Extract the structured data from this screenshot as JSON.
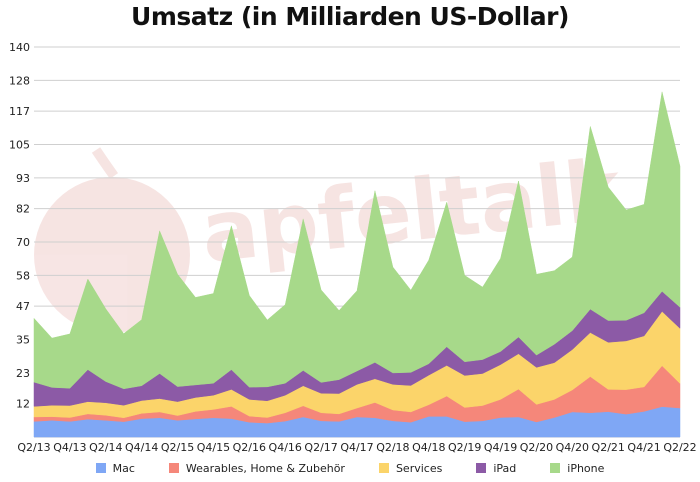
{
  "chart_data": {
    "type": "area",
    "stacked": true,
    "title": "Umsatz (in Milliarden US-Dollar)",
    "y_ticks": [
      12,
      23,
      35,
      47,
      58,
      70,
      82,
      93,
      105,
      117,
      128,
      140
    ],
    "ylim": [
      0,
      140
    ],
    "grid": true,
    "legend_position": "bottom",
    "x": [
      "Q2/13",
      "Q3/13",
      "Q4/13",
      "Q1/14",
      "Q2/14",
      "Q3/14",
      "Q4/14",
      "Q1/15",
      "Q2/15",
      "Q3/15",
      "Q4/15",
      "Q1/16",
      "Q2/16",
      "Q3/16",
      "Q4/16",
      "Q1/17",
      "Q2/17",
      "Q3/17",
      "Q4/17",
      "Q1/18",
      "Q2/18",
      "Q3/18",
      "Q4/18",
      "Q1/19",
      "Q2/19",
      "Q3/19",
      "Q4/19",
      "Q1/20",
      "Q2/20",
      "Q3/20",
      "Q4/20",
      "Q1/21",
      "Q2/21",
      "Q3/21",
      "Q4/21",
      "Q1/22",
      "Q2/22"
    ],
    "x_labels": [
      "Q2/13",
      "Q4/13",
      "Q2/14",
      "Q4/14",
      "Q2/15",
      "Q4/15",
      "Q2/16",
      "Q4/16",
      "Q2/17",
      "Q4/17",
      "Q2/18",
      "Q4/18",
      "Q2/19",
      "Q4/19",
      "Q2/20",
      "Q4/20",
      "Q2/21",
      "Q4/21",
      "Q2/22"
    ],
    "series": [
      {
        "name": "Mac",
        "color": "#7fa7f5",
        "values": [
          5.6,
          6.0,
          5.6,
          6.4,
          6.0,
          5.5,
          6.6,
          6.9,
          6.0,
          6.5,
          6.9,
          6.6,
          5.3,
          5.0,
          5.7,
          7.2,
          5.8,
          5.6,
          7.2,
          6.9,
          5.8,
          5.3,
          7.4,
          7.4,
          5.5,
          5.8,
          7.0,
          7.2,
          5.4,
          7.0,
          9.0,
          8.7,
          9.1,
          8.2,
          9.2,
          10.9,
          10.4
        ]
      },
      {
        "name": "Wearables, Home & Zubehör",
        "color": "#f5877a",
        "values": [
          1.6,
          1.3,
          1.4,
          1.9,
          1.8,
          1.4,
          1.9,
          2.1,
          1.7,
          2.7,
          3.0,
          4.4,
          2.2,
          2.0,
          3.0,
          4.0,
          2.9,
          2.7,
          3.2,
          5.5,
          3.9,
          3.7,
          4.2,
          7.3,
          5.1,
          5.5,
          6.5,
          10.0,
          6.3,
          6.5,
          7.9,
          13.0,
          8.0,
          8.8,
          8.8,
          14.7,
          8.8
        ]
      },
      {
        "name": "Services",
        "color": "#fbd46a",
        "values": [
          3.8,
          4.1,
          4.3,
          4.4,
          4.5,
          4.5,
          4.6,
          4.8,
          5.0,
          5.0,
          5.1,
          6.1,
          6.0,
          6.0,
          6.3,
          7.2,
          7.0,
          7.3,
          8.5,
          8.5,
          9.2,
          9.5,
          10.6,
          11.0,
          11.5,
          11.5,
          12.5,
          12.7,
          13.3,
          13.2,
          14.5,
          15.8,
          16.9,
          17.5,
          18.3,
          19.5,
          19.8
        ]
      },
      {
        "name": "iPad",
        "color": "#8c5aa6",
        "values": [
          8.7,
          6.4,
          6.2,
          11.5,
          7.6,
          5.9,
          5.3,
          9.0,
          5.4,
          4.5,
          4.3,
          7.1,
          4.4,
          5.0,
          4.3,
          5.5,
          3.9,
          5.0,
          4.8,
          5.9,
          4.1,
          4.7,
          4.1,
          6.7,
          4.9,
          5.0,
          4.7,
          6.0,
          4.4,
          6.6,
          6.8,
          8.4,
          7.8,
          7.4,
          8.3,
          7.2,
          7.6
        ]
      },
      {
        "name": "iPhone",
        "color": "#a7d98a",
        "values": [
          22.9,
          17.7,
          19.5,
          32.5,
          26.1,
          19.8,
          23.7,
          51.2,
          40.3,
          31.4,
          32.2,
          51.6,
          32.9,
          24.0,
          28.2,
          54.4,
          33.2,
          24.8,
          28.8,
          61.6,
          38.0,
          29.5,
          37.2,
          51.9,
          31.0,
          26.0,
          33.4,
          56.0,
          29.0,
          26.4,
          26.4,
          65.6,
          47.9,
          39.6,
          38.9,
          71.6,
          50.6
        ]
      }
    ]
  }
}
